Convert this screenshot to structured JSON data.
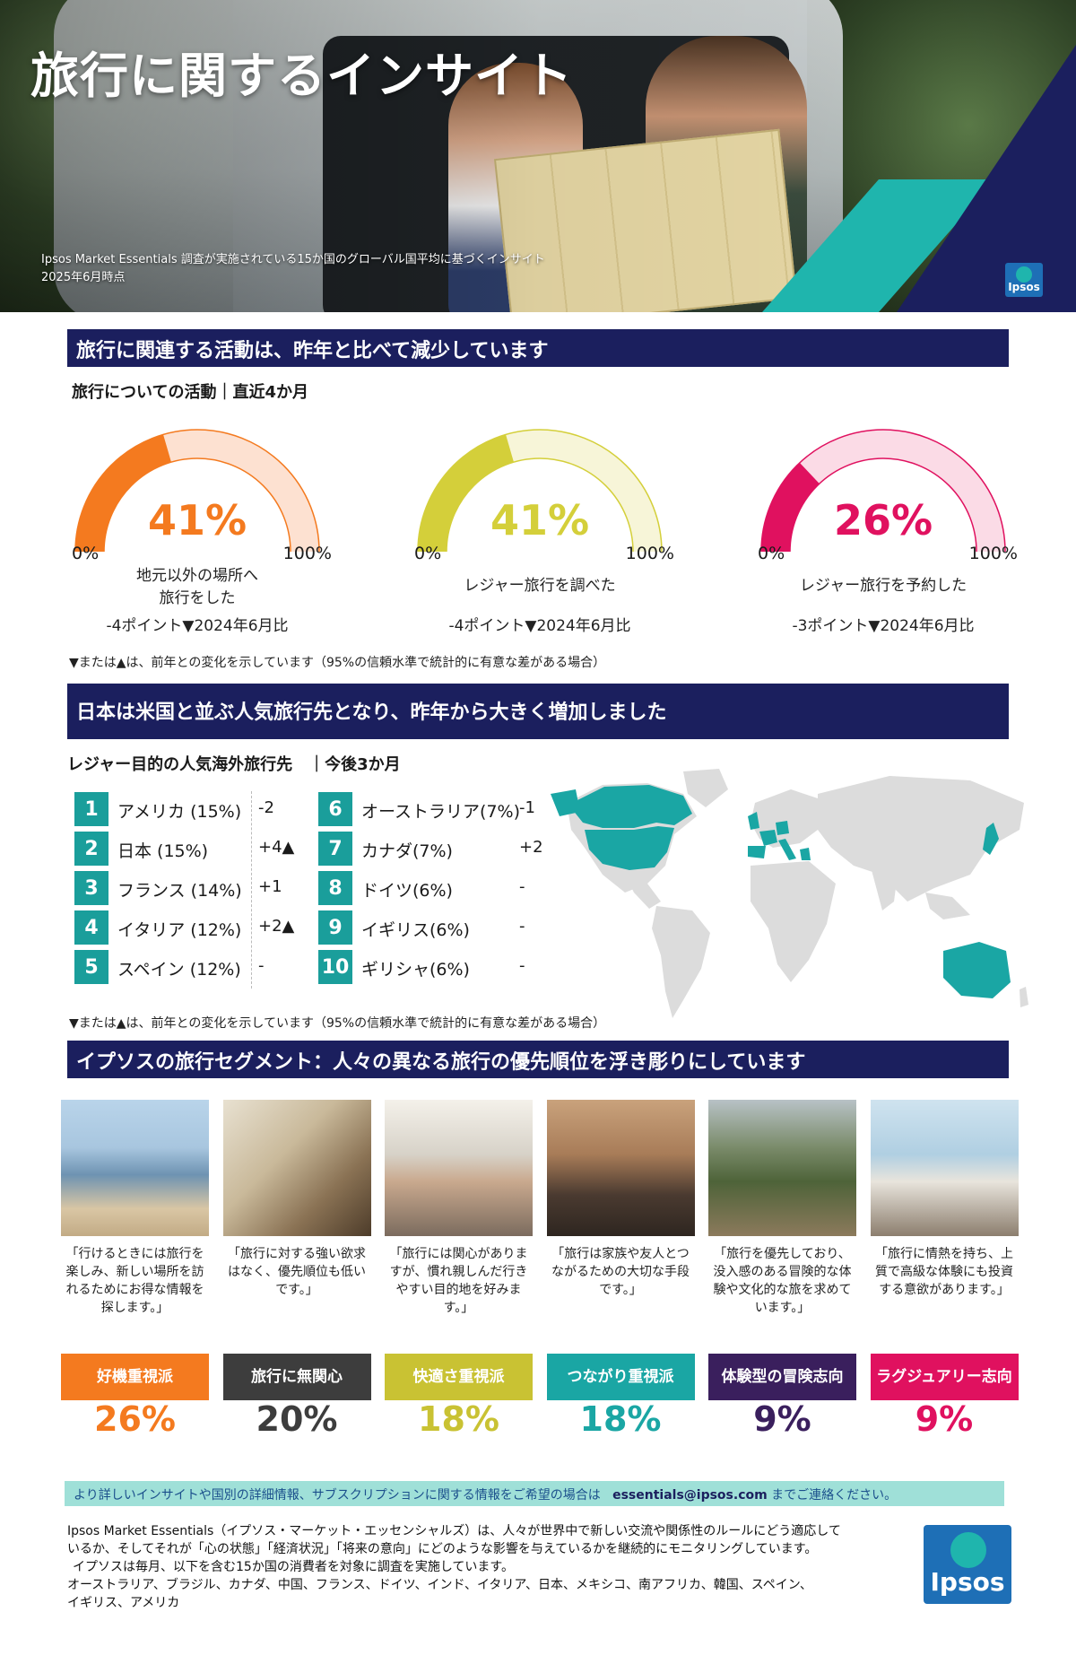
{
  "hero": {
    "title": "旅行に関するインサイト",
    "note_line1": "Ipsos Market Essentials 調査が実施されている15か国のグローバル国平均に基づくインサイト",
    "note_line2": "2025年6月時点",
    "logo": "Ipsos"
  },
  "section1": {
    "bar": "旅行に関連する活動は、昨年と比べて減少しています",
    "subhead": "旅行についての活動｜直近4か月",
    "min_label": "0%",
    "max_label": "100%",
    "gauges": [
      {
        "value": 41,
        "pct": "41%",
        "label_line1": "地元以外の場所へ",
        "label_line2": "旅行をした",
        "change": "-4ポイント▼2024年6月比",
        "color": "#f47a1f",
        "light": "#fde1d1"
      },
      {
        "value": 41,
        "pct": "41%",
        "label_line1": "レジャー旅行を調べた",
        "label_line2": "",
        "change": "-4ポイント▼2024年6月比",
        "color": "#d4cf3a",
        "light": "#f7f5d8"
      },
      {
        "value": 26,
        "pct": "26%",
        "label_line1": "レジャー旅行を予約した",
        "label_line2": "",
        "change": "-3ポイント▼2024年6月比",
        "color": "#e0115f",
        "light": "#fbdbe6"
      }
    ],
    "footnote": "▼または▲は、前年との変化を示しています（95%の信頼水準で統計的に有意な差がある場合）"
  },
  "section2": {
    "bar": "日本は米国と並ぶ人気旅行先となり、昨年から大きく増加しました",
    "subhead": "レジャー目的の人気海外旅行先　｜今後3か月",
    "ranks": [
      {
        "num": "1",
        "name": "アメリカ (15%)",
        "change": "-2"
      },
      {
        "num": "2",
        "name": "日本 (15%)",
        "change": "+4▲"
      },
      {
        "num": "3",
        "name": "フランス (14%)",
        "change": "+1"
      },
      {
        "num": "4",
        "name": "イタリア (12%)",
        "change": "+2▲"
      },
      {
        "num": "5",
        "name": "スペイン (12%)",
        "change": "-"
      },
      {
        "num": "6",
        "name": "オーストラリア(7%)",
        "change": "-1"
      },
      {
        "num": "7",
        "name": "カナダ(7%)",
        "change": "+2"
      },
      {
        "num": "8",
        "name": "ドイツ(6%)",
        "change": "-"
      },
      {
        "num": "9",
        "name": "イギリス(6%)",
        "change": "-"
      },
      {
        "num": "10",
        "name": "ギリシャ(6%)",
        "change": "-"
      }
    ],
    "map_highlight_color": "#1aa6a4",
    "map_base_color": "#dcdcdc",
    "footnote": "▼または▲は、前年との変化を示しています（95%の信頼水準で統計的に有意な差がある場合）"
  },
  "section3": {
    "bar": "イプソスの旅行セグメント：人々の異なる旅行の優先順位を浮き彫りにしています",
    "segments": [
      {
        "quote": "「行けるときには旅行を楽しみ、新しい場所を訪れるためにお得な情報を探します。」",
        "tag": "好機重視派",
        "share": "26%",
        "color": "#f47a1f",
        "share_color": "#f47a1f"
      },
      {
        "quote": "「旅行に対する強い欲求はなく、優先順位も低いです。」",
        "tag": "旅行に無関心",
        "share": "20%",
        "color": "#3d3d3d",
        "share_color": "#3d3d3d"
      },
      {
        "quote": "「旅行には関心がありますが、慣れ親しんだ行きやすい目的地を好みます。」",
        "tag": "快適さ重視派",
        "share": "18%",
        "color": "#c9c233",
        "share_color": "#c9c233"
      },
      {
        "quote": "「旅行は家族や友人とつながるための大切な手段です。」",
        "tag": "つながり重視派",
        "share": "18%",
        "color": "#1aa6a4",
        "share_color": "#1aa6a4"
      },
      {
        "quote": "「旅行を優先しており、没入感のある冒険的な体験や文化的な旅を求めています。」",
        "tag": "体験型の冒険志向",
        "share": "9%",
        "color": "#3a1f5d",
        "share_color": "#3a1f5d"
      },
      {
        "quote": "「旅行に情熱を持ち、上質で高級な体験にも投資する意欲があります。」",
        "tag": "ラグジュアリー志向",
        "share": "9%",
        "color": "#e0115f",
        "share_color": "#e0115f"
      }
    ]
  },
  "contact": {
    "text_before": "より詳しいインサイトや国別の詳細情報、サブスクリプションに関する情報をご希望の場合は",
    "email": "essentials@ipsos.com",
    "text_after": "までご連絡ください。"
  },
  "about": {
    "line1": "Ipsos Market Essentials（イプソス・マーケット・エッセンシャルズ）は、人々が世界中で新しい交流や関係性のルールにどう適応して",
    "line2": "いるか、そしてそれが「心の状態」「経済状況」「将来の意向」にどのような影響を与えているかを継続的にモニタリングしています。",
    "line3": "イプソスは毎月、以下を含む15か国の消費者を対象に調査を実施しています。",
    "line4": "オーストラリア、ブラジル、カナダ、中国、フランス、ドイツ、インド、イタリア、日本、メキシコ、南アフリカ、韓国、スペイン、",
    "line5": "イギリス、アメリカ",
    "logo": "Ipsos"
  }
}
